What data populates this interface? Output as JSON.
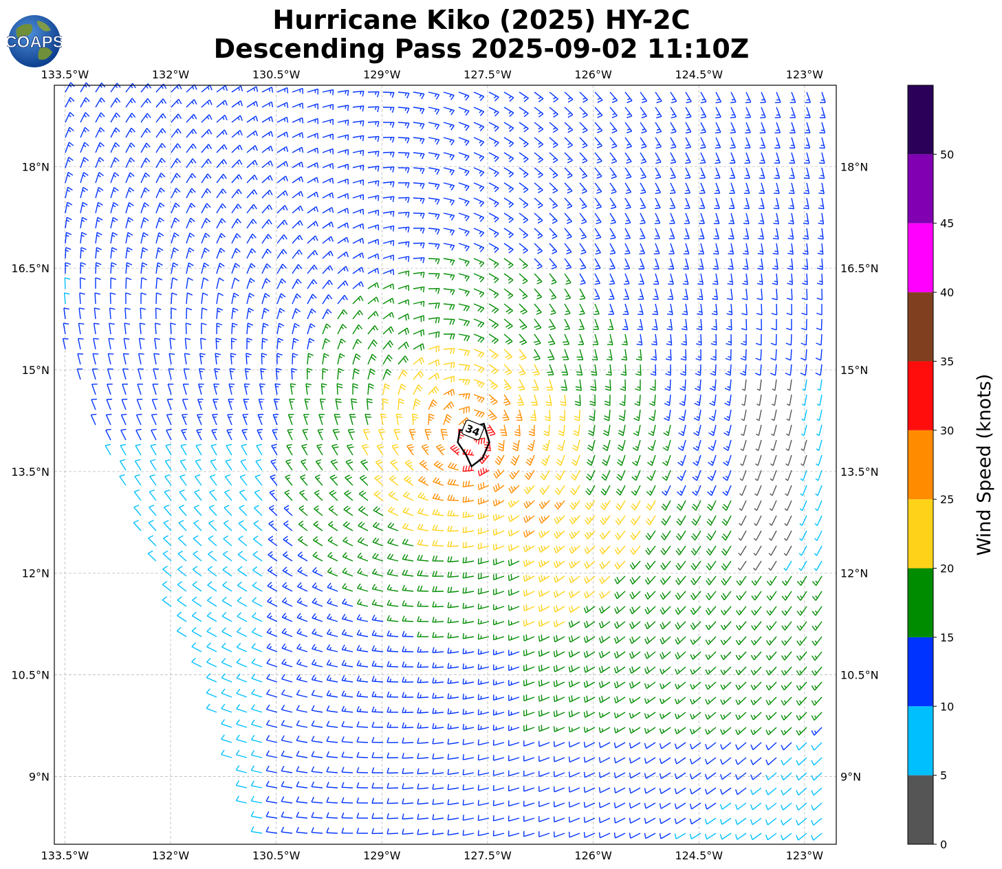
{
  "title_line1": "Hurricane Kiko (2025) HY-2C",
  "title_line2": "Descending Pass 2025-09-02 11:10Z",
  "logo_text": "COAPS",
  "map": {
    "lon_range": [
      -133.65,
      -122.55
    ],
    "lat_range": [
      8.0,
      19.2
    ],
    "lon_ticks": [
      {
        "value": -133.5,
        "label": "133.5°W"
      },
      {
        "value": -132.0,
        "label": "132°W"
      },
      {
        "value": -130.5,
        "label": "130.5°W"
      },
      {
        "value": -129.0,
        "label": "129°W"
      },
      {
        "value": -127.5,
        "label": "127.5°W"
      },
      {
        "value": -126.0,
        "label": "126°W"
      },
      {
        "value": -124.5,
        "label": "124.5°W"
      },
      {
        "value": -123.0,
        "label": "123°W"
      }
    ],
    "lat_ticks": [
      {
        "value": 18.0,
        "label": "18°N"
      },
      {
        "value": 16.5,
        "label": "16.5°N"
      },
      {
        "value": 15.0,
        "label": "15°N"
      },
      {
        "value": 13.5,
        "label": "13.5°N"
      },
      {
        "value": 12.0,
        "label": "12°N"
      },
      {
        "value": 10.5,
        "label": "10.5°N"
      },
      {
        "value": 9.0,
        "label": "9°N"
      }
    ],
    "storm_center": {
      "lon": -127.65,
      "lat": 13.85
    },
    "contour_label": "34",
    "gridlines": true
  },
  "colorbar": {
    "title": "Wind Speed (knots)",
    "bins": [
      {
        "min": 0,
        "max": 5,
        "color": "#555555"
      },
      {
        "min": 5,
        "max": 10,
        "color": "#00bfff"
      },
      {
        "min": 10,
        "max": 15,
        "color": "#0033ff"
      },
      {
        "min": 15,
        "max": 20,
        "color": "#008c00"
      },
      {
        "min": 20,
        "max": 25,
        "color": "#ffd21a"
      },
      {
        "min": 25,
        "max": 30,
        "color": "#ff8c00"
      },
      {
        "min": 30,
        "max": 35,
        "color": "#ff0d0d"
      },
      {
        "min": 35,
        "max": 40,
        "color": "#804020"
      },
      {
        "min": 40,
        "max": 45,
        "color": "#ff00ff"
      },
      {
        "min": 45,
        "max": 50,
        "color": "#8000b2"
      },
      {
        "min": 50,
        "max": 55,
        "color": "#2b0059"
      }
    ],
    "tick_labels": [
      "0",
      "5",
      "10",
      "15",
      "20",
      "25",
      "30",
      "35",
      "40",
      "45",
      "50"
    ]
  }
}
